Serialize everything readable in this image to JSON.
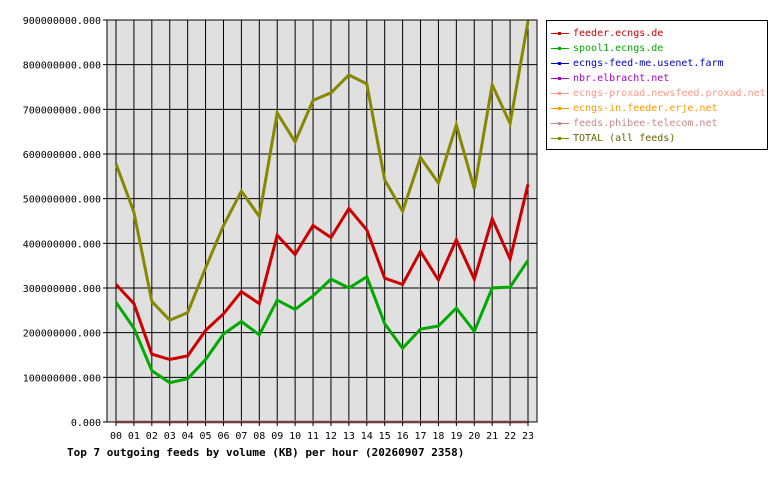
{
  "chart_data": {
    "type": "line",
    "title": "Top 7 outgoing feeds by volume (KB) per hour (20260907 2358)",
    "xlabel": "",
    "ylabel": "",
    "x": [
      "00",
      "01",
      "02",
      "03",
      "04",
      "05",
      "06",
      "07",
      "08",
      "09",
      "10",
      "11",
      "12",
      "13",
      "14",
      "15",
      "16",
      "17",
      "18",
      "19",
      "20",
      "21",
      "22",
      "23"
    ],
    "y_ticks": [
      "0.000",
      "100000000.000",
      "200000000.000",
      "300000000.000",
      "400000000.000",
      "500000000.000",
      "600000000.000",
      "700000000.000",
      "800000000.000",
      "900000000.000"
    ],
    "ylim": [
      0,
      900000000
    ],
    "grid": true,
    "legend_position": "right",
    "series": [
      {
        "name": "feeder.ecngs.de",
        "color": "#cc0000",
        "values": [
          308000000,
          265000000,
          152000000,
          140000000,
          148000000,
          205000000,
          242000000,
          292000000,
          265000000,
          418000000,
          375000000,
          440000000,
          413000000,
          478000000,
          430000000,
          322000000,
          308000000,
          382000000,
          318000000,
          408000000,
          320000000,
          455000000,
          365000000,
          532000000
        ]
      },
      {
        "name": "spool1.ecngs.de",
        "color": "#00aa00",
        "values": [
          268000000,
          210000000,
          115000000,
          88000000,
          97000000,
          140000000,
          197000000,
          225000000,
          195000000,
          273000000,
          252000000,
          282000000,
          320000000,
          300000000,
          325000000,
          220000000,
          165000000,
          208000000,
          215000000,
          255000000,
          203000000,
          300000000,
          302000000,
          362000000
        ]
      },
      {
        "name": "ecngs-feed-me.usenet.farm",
        "color": "#0000cc",
        "values": [
          0,
          0,
          0,
          0,
          0,
          0,
          0,
          0,
          0,
          0,
          0,
          0,
          0,
          0,
          0,
          0,
          0,
          0,
          0,
          0,
          0,
          0,
          0,
          0
        ]
      },
      {
        "name": "nbr.elbracht.net",
        "color": "#aa00cc",
        "values": [
          0,
          0,
          0,
          0,
          0,
          0,
          0,
          0,
          0,
          0,
          0,
          0,
          0,
          0,
          0,
          0,
          0,
          0,
          0,
          0,
          0,
          0,
          0,
          0
        ]
      },
      {
        "name": "ecngs-proxad.newsfeed.proxad.net",
        "color": "#ff9988",
        "values": [
          0,
          0,
          0,
          0,
          0,
          0,
          0,
          0,
          0,
          0,
          0,
          0,
          0,
          0,
          0,
          0,
          0,
          0,
          0,
          0,
          0,
          0,
          0,
          0
        ]
      },
      {
        "name": "ecngs-in.feeder.erje.net",
        "color": "#ff9900",
        "values": [
          0,
          0,
          0,
          0,
          0,
          0,
          0,
          0,
          0,
          0,
          0,
          0,
          0,
          0,
          0,
          0,
          0,
          0,
          0,
          0,
          0,
          0,
          0,
          0
        ]
      },
      {
        "name": "feeds.phibee-telecom.net",
        "color": "#cc8888",
        "values": [
          0,
          0,
          0,
          0,
          0,
          0,
          0,
          0,
          0,
          0,
          0,
          0,
          0,
          0,
          0,
          0,
          0,
          0,
          0,
          0,
          0,
          0,
          0,
          0
        ]
      },
      {
        "name": "TOTAL (all feeds)",
        "color": "#888800",
        "values": [
          578000000,
          470000000,
          270000000,
          228000000,
          245000000,
          345000000,
          440000000,
          517000000,
          460000000,
          692000000,
          627000000,
          720000000,
          737000000,
          777000000,
          757000000,
          542000000,
          472000000,
          592000000,
          535000000,
          665000000,
          522000000,
          755000000,
          668000000,
          897000000
        ]
      }
    ]
  }
}
